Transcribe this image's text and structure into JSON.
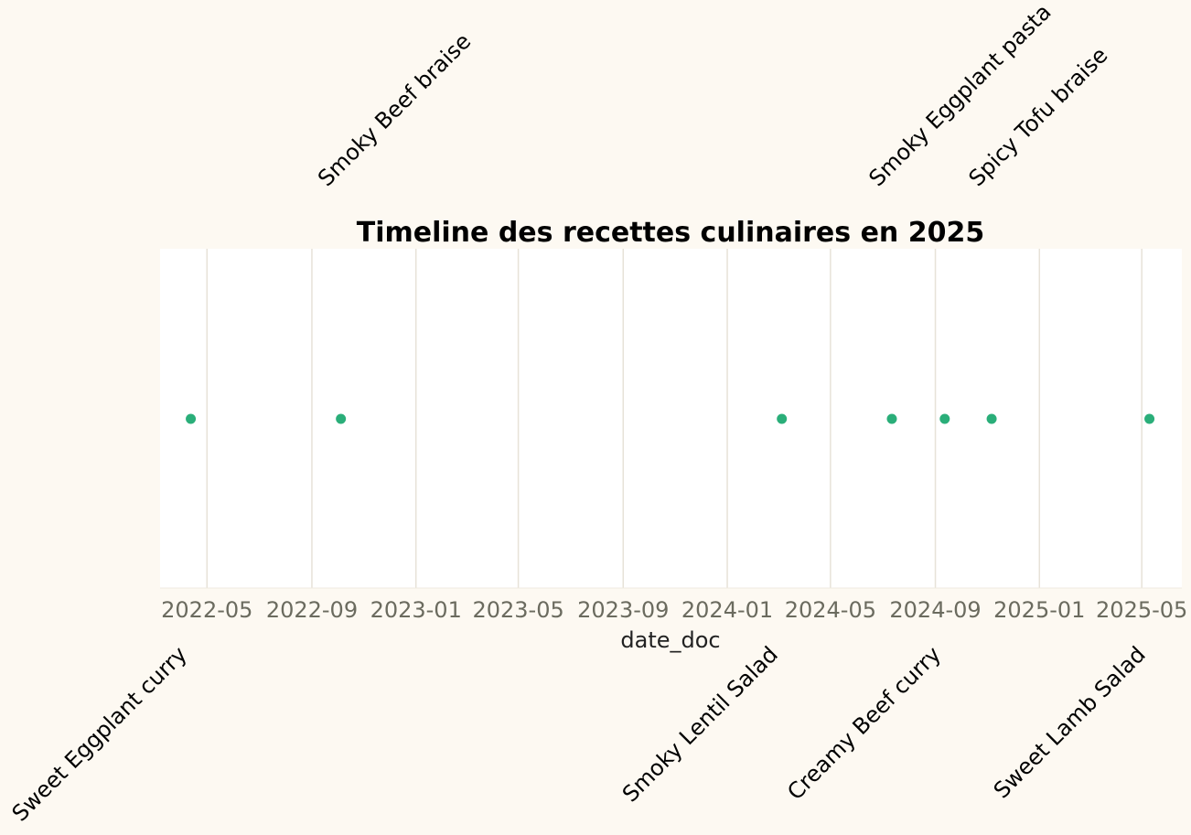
{
  "chart_data": {
    "type": "scatter",
    "title": "Timeline des recettes culinaires en 2025",
    "xlabel": "date_doc",
    "ylabel": "",
    "xlim": [
      "2022-03-07",
      "2025-06-17"
    ],
    "x_ticks": [
      "2022-05",
      "2022-09",
      "2023-01",
      "2023-05",
      "2023-09",
      "2024-01",
      "2024-05",
      "2024-09",
      "2025-01",
      "2025-05"
    ],
    "grid": "vertical",
    "points": [
      {
        "x": "2022-04-12",
        "label": "Sweet Eggplant curry",
        "label_side": "bottom"
      },
      {
        "x": "2022-10-05",
        "label": "Smoky Beef braise",
        "label_side": "top"
      },
      {
        "x": "2024-03-05",
        "label": "Smoky Lentil Salad",
        "label_side": "bottom"
      },
      {
        "x": "2024-07-12",
        "label": "Smoky Eggplant pasta",
        "label_side": "top"
      },
      {
        "x": "2024-09-12",
        "label": "Creamy Beef curry",
        "label_side": "bottom"
      },
      {
        "x": "2024-11-06",
        "label": "Spicy Tofu braise",
        "label_side": "top"
      },
      {
        "x": "2025-05-10",
        "label": "Sweet Lamb Salad",
        "label_side": "bottom"
      }
    ]
  },
  "colors": {
    "background": "#fdf9f2",
    "plot_background": "#ffffff",
    "grid": "#e7e2d8",
    "marker": "#2aae79",
    "tick_text": "#6b6b5f",
    "text": "#000000"
  }
}
